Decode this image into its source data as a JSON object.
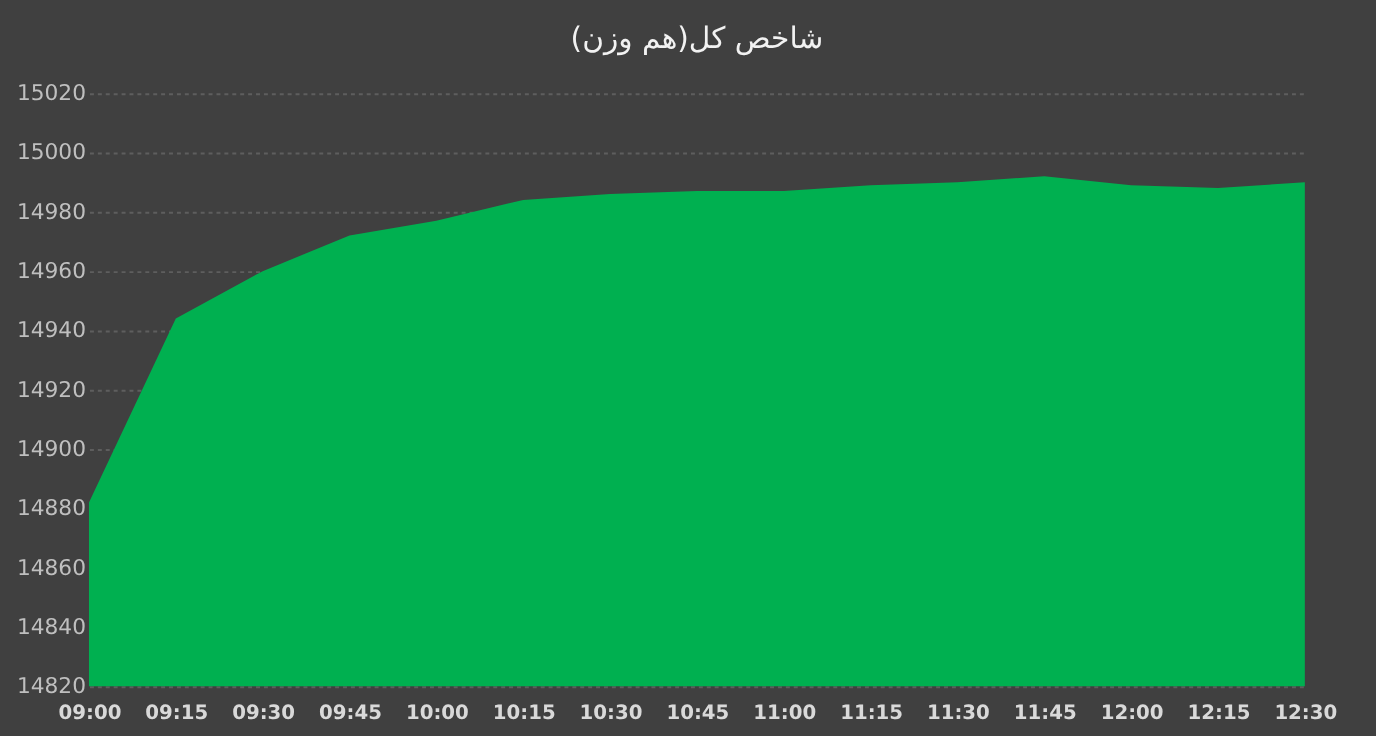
{
  "chart_data": {
    "type": "area",
    "title": "شاخص کل(هم وزن)",
    "categories": [
      "09:00",
      "09:15",
      "09:30",
      "09:45",
      "10:00",
      "10:15",
      "10:30",
      "10:45",
      "11:00",
      "11:15",
      "11:30",
      "11:45",
      "12:00",
      "12:15",
      "12:30"
    ],
    "series": [
      {
        "color": "#00b050",
        "values": [
          14882,
          14944,
          14960,
          14972,
          14977,
          14984,
          14986,
          14987,
          14987,
          14989,
          14990,
          14992,
          14989,
          14988,
          14990
        ]
      }
    ],
    "ylim": [
      14820,
      15020
    ],
    "yticks": [
      14820,
      14840,
      14860,
      14880,
      14900,
      14920,
      14940,
      14960,
      14980,
      15000,
      15020
    ],
    "grid": "y"
  }
}
